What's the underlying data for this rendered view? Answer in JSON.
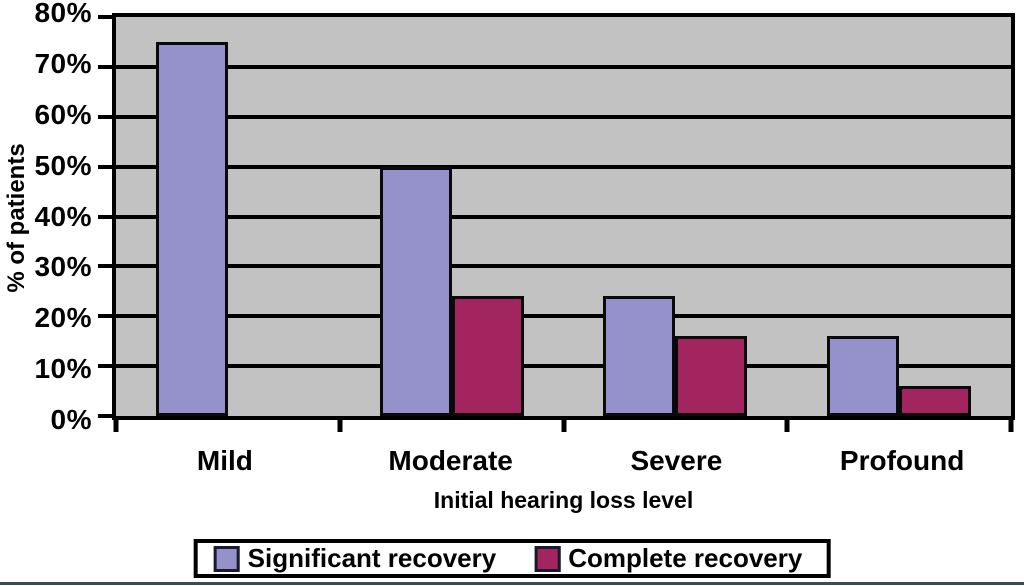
{
  "chart_data": {
    "type": "bar",
    "title": "",
    "xlabel": "Initial hearing loss level",
    "ylabel": "% of patients",
    "categories": [
      "Mild",
      "Moderate",
      "Severe",
      "Profound"
    ],
    "series": [
      {
        "name": "Significant recovery",
        "color": "#9592CB",
        "values": [
          75,
          50,
          24,
          16
        ]
      },
      {
        "name": "Complete recovery",
        "color": "#A2255F",
        "values": [
          null,
          24,
          16,
          6
        ]
      }
    ],
    "y_ticks": [
      "0%",
      "10%",
      "20%",
      "30%",
      "40%",
      "50%",
      "60%",
      "70%",
      "80%"
    ],
    "ylim": [
      0,
      80
    ],
    "grid": "horizontal",
    "gridline_color": "#000000",
    "plot_background": "#C2C2C2",
    "legend_position": "bottom-center"
  }
}
